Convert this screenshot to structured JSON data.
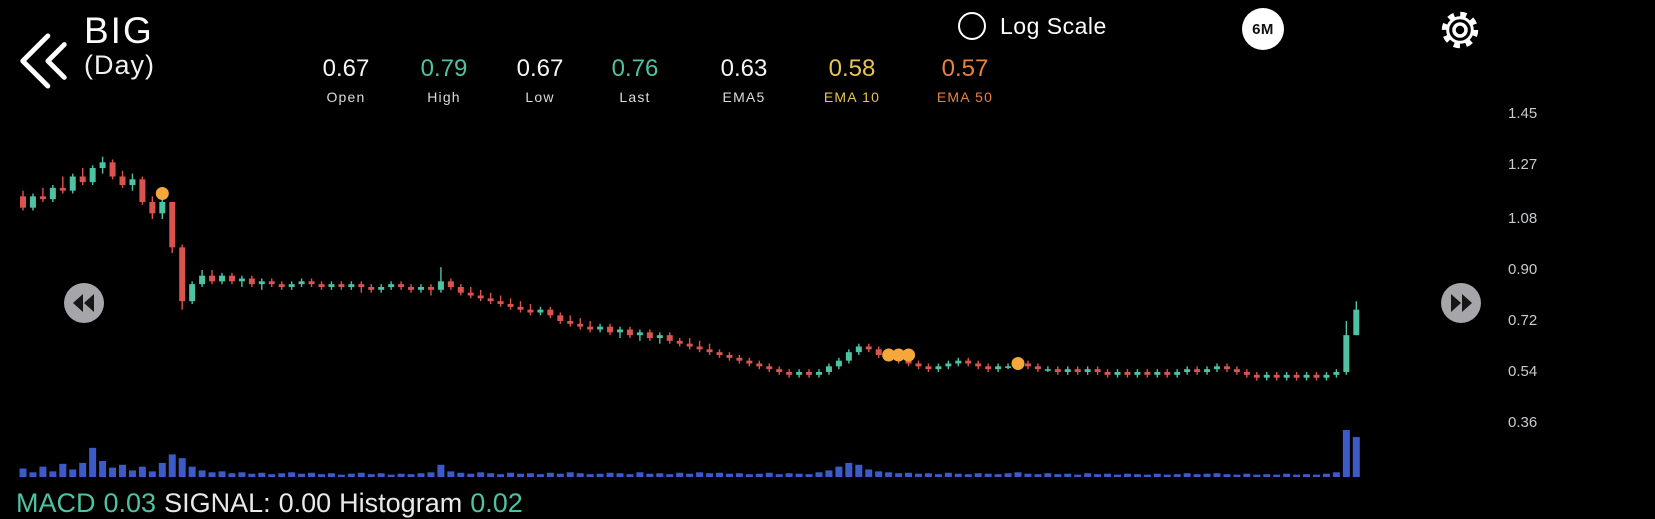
{
  "header": {
    "symbol": "BIG",
    "timeframe": "(Day)",
    "stats": [
      {
        "label": "Open",
        "value": "0.67",
        "color": "#f5f5f5",
        "label_color": "#dcdcdc"
      },
      {
        "label": "High",
        "value": "0.79",
        "color": "#4fc2a4",
        "label_color": "#dcdcdc"
      },
      {
        "label": "Low",
        "value": "0.67",
        "color": "#f5f5f5",
        "label_color": "#dcdcdc"
      },
      {
        "label": "Last",
        "value": "0.76",
        "color": "#4fc2a4",
        "label_color": "#dcdcdc"
      },
      {
        "label": "EMA5",
        "value": "0.63",
        "color": "#f5f5f5",
        "label_color": "#dcdcdc"
      },
      {
        "label": "EMA 10",
        "value": "0.58",
        "color": "#e7c54f",
        "label_color": "#e7c54f"
      },
      {
        "label": "EMA 50",
        "value": "0.57",
        "color": "#e8823d",
        "label_color": "#e8823d"
      }
    ],
    "log_scale_label": "Log Scale",
    "range_button": "6M"
  },
  "footer": {
    "macd_label": "MACD",
    "macd_value": "0.03",
    "signal_label": "SIGNAL:",
    "signal_value": "0.00",
    "hist_label": "Histogram",
    "hist_value": "0.02"
  },
  "chart_data": {
    "type": "candlestick",
    "symbol": "BIG",
    "interval": "Day",
    "range": "6M",
    "log_scale": false,
    "y_ticks": [
      "1.45",
      "1.27",
      "1.08",
      "0.90",
      "0.72",
      "0.54",
      "0.36"
    ],
    "y_domain": [
      0.3,
      1.5
    ],
    "colors": {
      "up": "#4fc2a4",
      "down": "#d9544f",
      "volume": "#3d5bc7",
      "marker": "#f4a83c"
    },
    "candles": [
      [
        1.16,
        1.18,
        1.11,
        1.12
      ],
      [
        1.12,
        1.17,
        1.11,
        1.16
      ],
      [
        1.16,
        1.19,
        1.14,
        1.15
      ],
      [
        1.15,
        1.2,
        1.14,
        1.19
      ],
      [
        1.19,
        1.23,
        1.17,
        1.18
      ],
      [
        1.18,
        1.24,
        1.17,
        1.23
      ],
      [
        1.23,
        1.26,
        1.2,
        1.21
      ],
      [
        1.21,
        1.27,
        1.2,
        1.26
      ],
      [
        1.26,
        1.3,
        1.24,
        1.28
      ],
      [
        1.28,
        1.29,
        1.22,
        1.23
      ],
      [
        1.23,
        1.25,
        1.19,
        1.2
      ],
      [
        1.2,
        1.24,
        1.18,
        1.22
      ],
      [
        1.22,
        1.23,
        1.13,
        1.14
      ],
      [
        1.14,
        1.16,
        1.08,
        1.1
      ],
      [
        1.1,
        1.15,
        1.08,
        1.14
      ],
      [
        1.14,
        1.14,
        0.96,
        0.98
      ],
      [
        0.98,
        0.99,
        0.76,
        0.79
      ],
      [
        0.79,
        0.86,
        0.78,
        0.85
      ],
      [
        0.85,
        0.9,
        0.84,
        0.88
      ],
      [
        0.88,
        0.9,
        0.85,
        0.86
      ],
      [
        0.86,
        0.89,
        0.85,
        0.88
      ],
      [
        0.88,
        0.89,
        0.85,
        0.86
      ],
      [
        0.86,
        0.88,
        0.84,
        0.87
      ],
      [
        0.87,
        0.88,
        0.84,
        0.85
      ],
      [
        0.85,
        0.87,
        0.83,
        0.86
      ],
      [
        0.86,
        0.87,
        0.84,
        0.85
      ],
      [
        0.85,
        0.86,
        0.83,
        0.84
      ],
      [
        0.84,
        0.86,
        0.83,
        0.85
      ],
      [
        0.85,
        0.87,
        0.84,
        0.86
      ],
      [
        0.86,
        0.87,
        0.84,
        0.85
      ],
      [
        0.85,
        0.86,
        0.83,
        0.84
      ],
      [
        0.84,
        0.86,
        0.83,
        0.85
      ],
      [
        0.85,
        0.86,
        0.83,
        0.84
      ],
      [
        0.84,
        0.86,
        0.83,
        0.85
      ],
      [
        0.85,
        0.86,
        0.82,
        0.84
      ],
      [
        0.84,
        0.85,
        0.82,
        0.83
      ],
      [
        0.83,
        0.85,
        0.82,
        0.84
      ],
      [
        0.84,
        0.86,
        0.83,
        0.85
      ],
      [
        0.85,
        0.86,
        0.83,
        0.84
      ],
      [
        0.84,
        0.85,
        0.82,
        0.83
      ],
      [
        0.83,
        0.85,
        0.82,
        0.84
      ],
      [
        0.84,
        0.85,
        0.81,
        0.83
      ],
      [
        0.83,
        0.91,
        0.82,
        0.86
      ],
      [
        0.86,
        0.87,
        0.83,
        0.84
      ],
      [
        0.84,
        0.85,
        0.81,
        0.82
      ],
      [
        0.82,
        0.84,
        0.8,
        0.81
      ],
      [
        0.81,
        0.83,
        0.79,
        0.8
      ],
      [
        0.8,
        0.82,
        0.78,
        0.79
      ],
      [
        0.79,
        0.81,
        0.77,
        0.78
      ],
      [
        0.78,
        0.8,
        0.76,
        0.77
      ],
      [
        0.77,
        0.79,
        0.75,
        0.76
      ],
      [
        0.76,
        0.78,
        0.74,
        0.75
      ],
      [
        0.75,
        0.77,
        0.74,
        0.76
      ],
      [
        0.76,
        0.77,
        0.73,
        0.74
      ],
      [
        0.74,
        0.75,
        0.71,
        0.72
      ],
      [
        0.72,
        0.74,
        0.7,
        0.71
      ],
      [
        0.71,
        0.73,
        0.69,
        0.7
      ],
      [
        0.7,
        0.72,
        0.68,
        0.69
      ],
      [
        0.69,
        0.71,
        0.68,
        0.7
      ],
      [
        0.7,
        0.71,
        0.67,
        0.68
      ],
      [
        0.68,
        0.7,
        0.66,
        0.69
      ],
      [
        0.69,
        0.7,
        0.66,
        0.67
      ],
      [
        0.67,
        0.69,
        0.65,
        0.68
      ],
      [
        0.68,
        0.69,
        0.65,
        0.66
      ],
      [
        0.66,
        0.68,
        0.64,
        0.67
      ],
      [
        0.67,
        0.68,
        0.64,
        0.65
      ],
      [
        0.65,
        0.66,
        0.63,
        0.64
      ],
      [
        0.64,
        0.66,
        0.62,
        0.63
      ],
      [
        0.63,
        0.65,
        0.61,
        0.62
      ],
      [
        0.62,
        0.64,
        0.6,
        0.61
      ],
      [
        0.61,
        0.62,
        0.59,
        0.6
      ],
      [
        0.6,
        0.61,
        0.58,
        0.59
      ],
      [
        0.59,
        0.6,
        0.57,
        0.58
      ],
      [
        0.58,
        0.59,
        0.56,
        0.57
      ],
      [
        0.57,
        0.58,
        0.55,
        0.56
      ],
      [
        0.56,
        0.57,
        0.54,
        0.55
      ],
      [
        0.55,
        0.56,
        0.53,
        0.54
      ],
      [
        0.54,
        0.55,
        0.52,
        0.53
      ],
      [
        0.53,
        0.55,
        0.52,
        0.54
      ],
      [
        0.54,
        0.55,
        0.52,
        0.53
      ],
      [
        0.53,
        0.55,
        0.52,
        0.54
      ],
      [
        0.54,
        0.57,
        0.53,
        0.56
      ],
      [
        0.56,
        0.59,
        0.55,
        0.58
      ],
      [
        0.58,
        0.62,
        0.57,
        0.61
      ],
      [
        0.61,
        0.64,
        0.6,
        0.63
      ],
      [
        0.63,
        0.64,
        0.61,
        0.62
      ],
      [
        0.62,
        0.63,
        0.59,
        0.6
      ],
      [
        0.6,
        0.61,
        0.58,
        0.59
      ],
      [
        0.59,
        0.6,
        0.57,
        0.58
      ],
      [
        0.58,
        0.59,
        0.56,
        0.57
      ],
      [
        0.57,
        0.58,
        0.55,
        0.56
      ],
      [
        0.56,
        0.57,
        0.54,
        0.55
      ],
      [
        0.55,
        0.57,
        0.54,
        0.56
      ],
      [
        0.56,
        0.58,
        0.55,
        0.57
      ],
      [
        0.57,
        0.59,
        0.56,
        0.58
      ],
      [
        0.58,
        0.59,
        0.56,
        0.57
      ],
      [
        0.57,
        0.58,
        0.55,
        0.56
      ],
      [
        0.56,
        0.57,
        0.54,
        0.55
      ],
      [
        0.55,
        0.57,
        0.54,
        0.56
      ],
      [
        0.56,
        0.57,
        0.55,
        0.56
      ],
      [
        0.56,
        0.57,
        0.55,
        0.57
      ],
      [
        0.57,
        0.58,
        0.55,
        0.56
      ],
      [
        0.56,
        0.57,
        0.54,
        0.55
      ],
      [
        0.55,
        0.56,
        0.54,
        0.55
      ],
      [
        0.55,
        0.56,
        0.53,
        0.54
      ],
      [
        0.54,
        0.56,
        0.53,
        0.55
      ],
      [
        0.55,
        0.56,
        0.53,
        0.54
      ],
      [
        0.54,
        0.56,
        0.53,
        0.55
      ],
      [
        0.55,
        0.56,
        0.53,
        0.54
      ],
      [
        0.54,
        0.55,
        0.52,
        0.53
      ],
      [
        0.53,
        0.55,
        0.52,
        0.54
      ],
      [
        0.54,
        0.55,
        0.52,
        0.53
      ],
      [
        0.53,
        0.55,
        0.52,
        0.54
      ],
      [
        0.54,
        0.55,
        0.52,
        0.53
      ],
      [
        0.53,
        0.55,
        0.52,
        0.54
      ],
      [
        0.54,
        0.55,
        0.52,
        0.53
      ],
      [
        0.53,
        0.55,
        0.52,
        0.54
      ],
      [
        0.54,
        0.56,
        0.53,
        0.55
      ],
      [
        0.55,
        0.56,
        0.53,
        0.54
      ],
      [
        0.54,
        0.56,
        0.53,
        0.55
      ],
      [
        0.55,
        0.57,
        0.54,
        0.56
      ],
      [
        0.56,
        0.57,
        0.54,
        0.55
      ],
      [
        0.55,
        0.56,
        0.53,
        0.54
      ],
      [
        0.54,
        0.55,
        0.52,
        0.53
      ],
      [
        0.53,
        0.54,
        0.51,
        0.52
      ],
      [
        0.52,
        0.54,
        0.51,
        0.53
      ],
      [
        0.53,
        0.54,
        0.51,
        0.52
      ],
      [
        0.52,
        0.54,
        0.51,
        0.53
      ],
      [
        0.53,
        0.54,
        0.51,
        0.52
      ],
      [
        0.52,
        0.54,
        0.51,
        0.53
      ],
      [
        0.53,
        0.54,
        0.51,
        0.52
      ],
      [
        0.52,
        0.54,
        0.51,
        0.53
      ],
      [
        0.53,
        0.55,
        0.52,
        0.54
      ],
      [
        0.54,
        0.72,
        0.53,
        0.67
      ],
      [
        0.67,
        0.79,
        0.67,
        0.76
      ]
    ],
    "volume": [
      0.18,
      0.1,
      0.22,
      0.12,
      0.28,
      0.16,
      0.3,
      0.62,
      0.34,
      0.2,
      0.26,
      0.14,
      0.22,
      0.12,
      0.3,
      0.48,
      0.4,
      0.22,
      0.14,
      0.1,
      0.12,
      0.08,
      0.1,
      0.07,
      0.09,
      0.06,
      0.08,
      0.1,
      0.07,
      0.09,
      0.06,
      0.08,
      0.05,
      0.07,
      0.09,
      0.06,
      0.08,
      0.05,
      0.07,
      0.06,
      0.08,
      0.1,
      0.26,
      0.12,
      0.09,
      0.07,
      0.1,
      0.08,
      0.06,
      0.09,
      0.07,
      0.08,
      0.06,
      0.09,
      0.07,
      0.1,
      0.08,
      0.06,
      0.07,
      0.09,
      0.08,
      0.06,
      0.1,
      0.07,
      0.08,
      0.06,
      0.09,
      0.07,
      0.1,
      0.08,
      0.09,
      0.07,
      0.08,
      0.06,
      0.07,
      0.09,
      0.06,
      0.08,
      0.07,
      0.06,
      0.1,
      0.14,
      0.22,
      0.3,
      0.26,
      0.16,
      0.12,
      0.1,
      0.08,
      0.09,
      0.07,
      0.08,
      0.06,
      0.09,
      0.07,
      0.06,
      0.08,
      0.07,
      0.06,
      0.08,
      0.1,
      0.07,
      0.06,
      0.08,
      0.06,
      0.07,
      0.05,
      0.08,
      0.06,
      0.07,
      0.05,
      0.07,
      0.06,
      0.05,
      0.07,
      0.05,
      0.06,
      0.08,
      0.06,
      0.07,
      0.08,
      0.06,
      0.05,
      0.07,
      0.05,
      0.06,
      0.05,
      0.07,
      0.05,
      0.06,
      0.05,
      0.07,
      0.1,
      1.0,
      0.85
    ],
    "markers": [
      {
        "i": 14,
        "price": 1.17
      },
      {
        "i": 87,
        "price": 0.6
      },
      {
        "i": 88,
        "price": 0.6
      },
      {
        "i": 89,
        "price": 0.6
      },
      {
        "i": 100,
        "price": 0.57
      }
    ]
  }
}
